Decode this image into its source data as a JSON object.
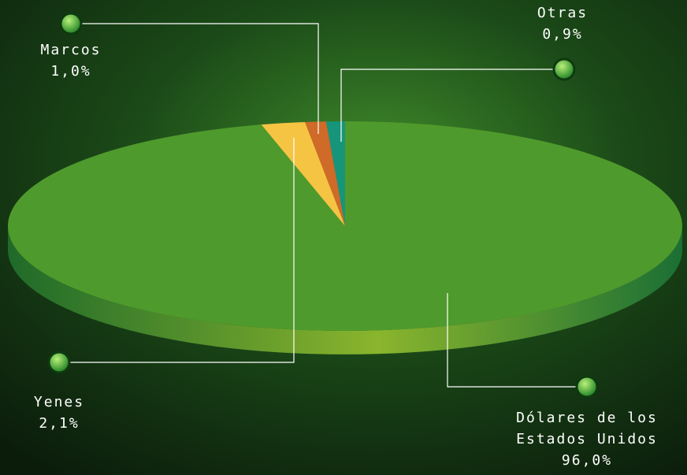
{
  "chart_data": {
    "type": "pie",
    "categories": [
      "Otras",
      "Marcos",
      "Yenes",
      "Dólares de los Estados Unidos"
    ],
    "values": [
      0.9,
      1.0,
      2.1,
      96.0
    ],
    "value_labels": [
      "0,9%",
      "1,0%",
      "2,1%",
      "96,0%"
    ],
    "colors": [
      "#16957a",
      "#cf6a28",
      "#f6c443",
      "#4f9a2c"
    ]
  }
}
